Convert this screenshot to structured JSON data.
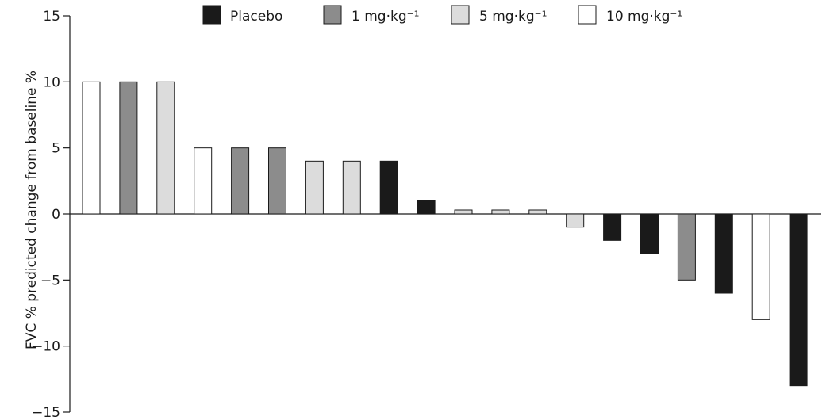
{
  "chart_data": {
    "type": "bar",
    "title": "",
    "xlabel": "",
    "ylabel": "FVC % predicted change from baseline %",
    "ylim": [
      -15,
      15
    ],
    "yticks": [
      "15",
      "10",
      "5",
      "0",
      "−5",
      "−10",
      "−15"
    ],
    "ytick_values": [
      15,
      10,
      5,
      0,
      -5,
      -10,
      -15
    ],
    "grid": false,
    "legend_position": "top",
    "groups": [
      {
        "key": "placebo",
        "label": "Placebo",
        "color": "#1a1a1a"
      },
      {
        "key": "d1",
        "label": "1 mg·kg⁻¹",
        "color": "#8c8c8c"
      },
      {
        "key": "d5",
        "label": "5 mg·kg⁻¹",
        "color": "#dcdcdc"
      },
      {
        "key": "d10",
        "label": "10 mg·kg⁻¹",
        "color": "#ffffff"
      }
    ],
    "bars": [
      {
        "group": "d10",
        "value": 10
      },
      {
        "group": "d1",
        "value": 10
      },
      {
        "group": "d5",
        "value": 10
      },
      {
        "group": "d10",
        "value": 5
      },
      {
        "group": "d1",
        "value": 5
      },
      {
        "group": "d1",
        "value": 5
      },
      {
        "group": "d5",
        "value": 4
      },
      {
        "group": "d5",
        "value": 4
      },
      {
        "group": "placebo",
        "value": 4
      },
      {
        "group": "placebo",
        "value": 1
      },
      {
        "group": "d5",
        "value": 0.3
      },
      {
        "group": "d5",
        "value": 0.3
      },
      {
        "group": "d5",
        "value": 0.3
      },
      {
        "group": "d5",
        "value": -1
      },
      {
        "group": "placebo",
        "value": -2
      },
      {
        "group": "placebo",
        "value": -3
      },
      {
        "group": "d1",
        "value": -5
      },
      {
        "group": "placebo",
        "value": -6
      },
      {
        "group": "d10",
        "value": -8
      },
      {
        "group": "placebo",
        "value": -13
      }
    ]
  }
}
